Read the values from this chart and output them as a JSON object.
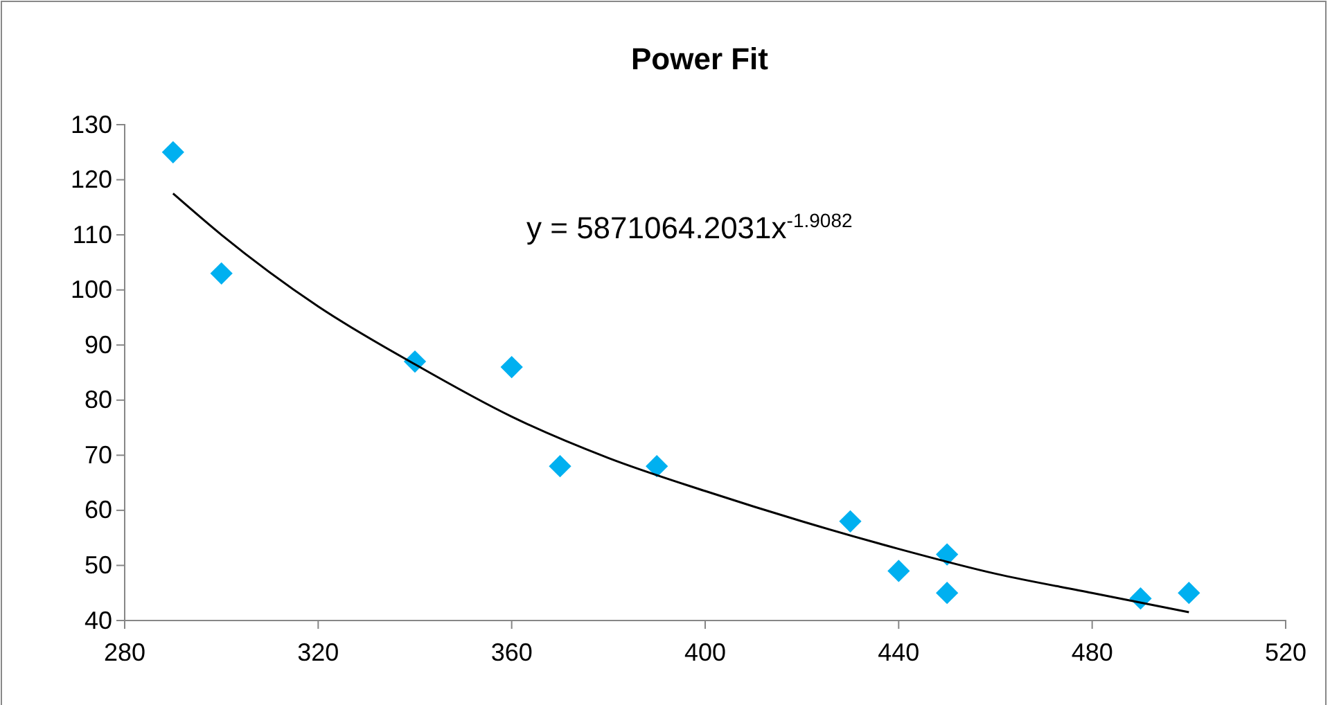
{
  "chart_data": {
    "type": "scatter",
    "title": "Power Fit",
    "xlim": [
      280,
      520
    ],
    "xticks": [
      280,
      320,
      360,
      400,
      440,
      480,
      520
    ],
    "ylim": [
      40,
      130
    ],
    "yticks": [
      40,
      50,
      60,
      70,
      80,
      90,
      100,
      110,
      120,
      130
    ],
    "grid": false,
    "annotations": [
      "y = 5871064.2031x$^{-1.9082}$"
    ],
    "series": [
      {
        "marker": "diamond",
        "color": "#00b0f0",
        "x": [
          290,
          300,
          340,
          360,
          370,
          390,
          430,
          440,
          450,
          450,
          490,
          500
        ],
        "values": [
          125,
          103,
          87,
          86,
          68,
          68,
          58,
          49,
          52,
          45,
          44,
          45
        ]
      },
      {
        "type": "line",
        "marker": "none",
        "color": "#000000",
        "line_style": "solid",
        "x": [
          290,
          300,
          320,
          340,
          360,
          380,
          400,
          420,
          440,
          460,
          480,
          500
        ],
        "values": [
          117.5,
          110,
          97,
          86.5,
          77,
          69.5,
          63.5,
          58,
          53,
          48.5,
          45,
          41.5
        ]
      }
    ]
  }
}
